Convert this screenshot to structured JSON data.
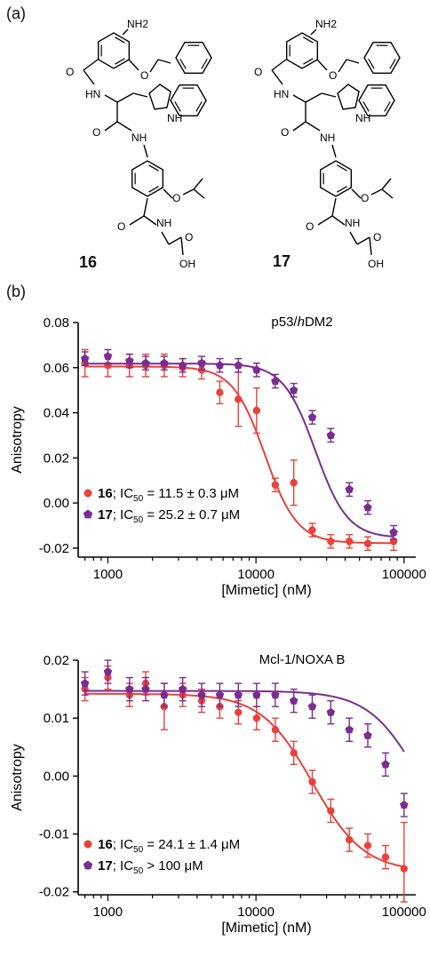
{
  "figure": {
    "panel_a_label": "(a)",
    "panel_b_label": "(b)",
    "compounds": [
      {
        "id": "16",
        "label": "16",
        "atoms": [
          "NH2",
          "O",
          "O",
          "HN",
          "NH",
          "O",
          "NH",
          "O",
          "O",
          "NH",
          "O",
          "OH"
        ]
      },
      {
        "id": "17",
        "label": "17",
        "atoms": [
          "NH2",
          "O",
          "O",
          "HN",
          "NH",
          "O",
          "NH",
          "O",
          "O",
          "NH",
          "O",
          "OH"
        ]
      }
    ]
  },
  "colors": {
    "compound16": "#e8423a",
    "compound17": "#7a2d8f",
    "axis": "#000000"
  },
  "chart_data": [
    {
      "type": "scatter",
      "title": "p53/hDM2",
      "title_parts": [
        "p53/",
        "h",
        "DM2"
      ],
      "xlabel": "[Mimetic] (nM)",
      "ylabel": "Anisotropy",
      "xscale": "log",
      "xlim": [
        630,
        120000
      ],
      "ylim": [
        -0.024,
        0.08
      ],
      "yticks": [
        "0.08",
        "0.06",
        "0.04",
        "0.02",
        "0.00",
        "-0.02"
      ],
      "ytick_values": [
        0.08,
        0.06,
        0.04,
        0.02,
        0.0,
        -0.02
      ],
      "xticks": [
        "1000",
        "10000",
        "100000"
      ],
      "xtick_values": [
        1000,
        10000,
        100000
      ],
      "legend_position": "bottom-left",
      "series": [
        {
          "name": "16; IC50 = 11.5 ± 0.3 μM",
          "legend_parts": [
            "16",
            "; IC",
            "50",
            " = 11.5 ± 0.3 μM"
          ],
          "color": "#e8423a",
          "marker": "circle",
          "x": [
            700,
            1000,
            1400,
            1800,
            2400,
            3200,
            4300,
            5700,
            7600,
            10100,
            13500,
            18000,
            24000,
            32000,
            42700,
            56900,
            85000
          ],
          "y": [
            0.062,
            0.061,
            0.061,
            0.061,
            0.061,
            0.06,
            0.059,
            0.049,
            0.046,
            0.041,
            0.008,
            0.009,
            -0.012,
            -0.017,
            -0.017,
            -0.018,
            -0.017
          ],
          "err": [
            0.006,
            0.005,
            0.005,
            0.005,
            0.005,
            0.004,
            0.004,
            0.005,
            0.012,
            0.01,
            0.003,
            0.01,
            0.003,
            0.003,
            0.003,
            0.003,
            0.004
          ],
          "fit": {
            "top": 0.0605,
            "bottom": -0.0178,
            "ic50": 11500,
            "hill": 4.0
          }
        },
        {
          "name": "17; IC50 = 25.2 ± 0.7 μM",
          "legend_parts": [
            "17",
            "; IC",
            "50",
            " = 25.2 ± 0.7 μM"
          ],
          "color": "#7a2d8f",
          "marker": "pentagon",
          "x": [
            700,
            1000,
            1400,
            1800,
            2400,
            3200,
            4300,
            5700,
            7600,
            10100,
            13500,
            18000,
            24000,
            32000,
            42700,
            56900,
            85000
          ],
          "y": [
            0.064,
            0.065,
            0.063,
            0.062,
            0.062,
            0.061,
            0.062,
            0.061,
            0.061,
            0.059,
            0.054,
            0.05,
            0.038,
            0.03,
            0.006,
            -0.002,
            -0.013
          ],
          "err": [
            0.003,
            0.003,
            0.003,
            0.003,
            0.003,
            0.003,
            0.003,
            0.003,
            0.003,
            0.003,
            0.003,
            0.003,
            0.003,
            0.003,
            0.003,
            0.003,
            0.003
          ],
          "fit": {
            "top": 0.0618,
            "bottom": -0.0155,
            "ic50": 25200,
            "hill": 4.0
          }
        }
      ]
    },
    {
      "type": "scatter",
      "title": "Mcl-1/NOXA B",
      "title_parts": [
        "Mcl-1/NOXA B",
        "",
        ""
      ],
      "xlabel": "[Mimetic] (nM)",
      "ylabel": "Anisotropy",
      "xscale": "log",
      "xlim": [
        630,
        120000
      ],
      "ylim": [
        -0.0205,
        0.02
      ],
      "yticks": [
        "0.02",
        "0.01",
        "0.00",
        "-0.01",
        "-0.02"
      ],
      "ytick_values": [
        0.02,
        0.01,
        0.0,
        -0.01,
        -0.02
      ],
      "xticks": [
        "1000",
        "10000",
        "100000"
      ],
      "xtick_values": [
        1000,
        10000,
        100000
      ],
      "legend_position": "bottom-left",
      "series": [
        {
          "name": "16; IC50 = 24.1 ± 1.4 μM",
          "legend_parts": [
            "16",
            "; IC",
            "50",
            " = 24.1 ± 1.4 μM"
          ],
          "color": "#e8423a",
          "marker": "circle",
          "x": [
            700,
            1000,
            1400,
            1800,
            2400,
            3200,
            4300,
            5700,
            7600,
            10100,
            13500,
            18000,
            24000,
            32000,
            42700,
            56900,
            75000,
            100000
          ],
          "y": [
            0.015,
            0.017,
            0.014,
            0.016,
            0.012,
            0.014,
            0.013,
            0.012,
            0.011,
            0.01,
            0.008,
            0.004,
            -0.001,
            -0.006,
            -0.011,
            -0.012,
            -0.014,
            -0.016
          ],
          "err": [
            0.002,
            0.002,
            0.002,
            0.002,
            0.004,
            0.002,
            0.002,
            0.002,
            0.002,
            0.002,
            0.002,
            0.002,
            0.002,
            0.002,
            0.002,
            0.002,
            0.002,
            0.008
          ],
          "fit": {
            "top": 0.0142,
            "bottom": -0.0165,
            "ic50": 24100,
            "hill": 2.5
          }
        },
        {
          "name": "17; IC50 > 100 μM",
          "legend_parts": [
            "17",
            "; IC",
            "50",
            " > 100 μM"
          ],
          "color": "#7a2d8f",
          "marker": "pentagon",
          "x": [
            700,
            1000,
            1400,
            1800,
            2400,
            3200,
            4300,
            5700,
            7600,
            10100,
            13500,
            18000,
            24000,
            32000,
            42700,
            56900,
            75000,
            100000
          ],
          "y": [
            0.016,
            0.018,
            0.015,
            0.015,
            0.014,
            0.015,
            0.014,
            0.014,
            0.014,
            0.014,
            0.014,
            0.013,
            0.012,
            0.011,
            0.008,
            0.007,
            0.002,
            -0.005
          ],
          "err": [
            0.002,
            0.002,
            0.002,
            0.002,
            0.002,
            0.002,
            0.002,
            0.002,
            0.002,
            0.002,
            0.002,
            0.002,
            0.002,
            0.002,
            0.002,
            0.002,
            0.002,
            0.002
          ],
          "fit": {
            "top": 0.0147,
            "bottom": -0.016,
            "ic50": 130000,
            "hill": 2.5
          }
        }
      ]
    }
  ]
}
